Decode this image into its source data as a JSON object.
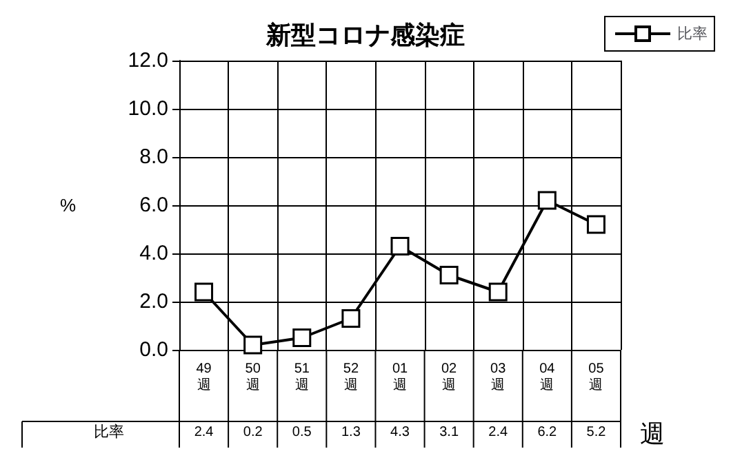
{
  "chart_data": {
    "type": "line",
    "title": "新型コロナ感染症",
    "ylabel": "%",
    "xlabel": "週",
    "categories": [
      "49\n週",
      "50\n週",
      "51\n週",
      "52\n週",
      "01\n週",
      "02\n週",
      "03\n週",
      "04\n週",
      "05\n週"
    ],
    "series": [
      {
        "name": "比率",
        "color": "#000000",
        "values": [
          2.4,
          0.2,
          0.5,
          1.3,
          4.3,
          3.1,
          2.4,
          6.2,
          5.2
        ]
      }
    ],
    "ylim": [
      0,
      12
    ],
    "yticks": [
      {
        "value": 0,
        "label": "0.0"
      },
      {
        "value": 2,
        "label": "2.0"
      },
      {
        "value": 4,
        "label": "4.0"
      },
      {
        "value": 6,
        "label": "6.0"
      },
      {
        "value": 8,
        "label": "8.0"
      },
      {
        "value": 10,
        "label": "10.0"
      },
      {
        "value": 12,
        "label": "12.0"
      }
    ],
    "grid": true,
    "legend": "top right",
    "marker": "square",
    "line_style": "solid",
    "data_labels": true
  }
}
